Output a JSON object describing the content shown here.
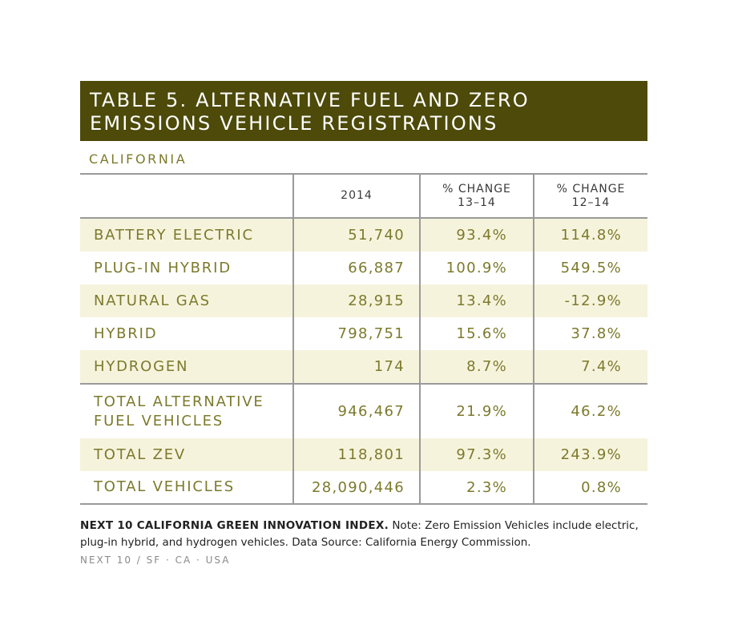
{
  "title": "TABLE 5. ALTERNATIVE FUEL AND ZERO\nEMISSIONS VEHICLE REGISTRATIONS",
  "subtitle": "CALIFORNIA",
  "columns": [
    "",
    "2014",
    "% CHANGE\n13–14",
    "% CHANGE\n12–14"
  ],
  "rows": [
    {
      "label": "BATTERY ELECTRIC",
      "v2014": "51,740",
      "chg1314": "93.4%",
      "chg1214": "114.8%"
    },
    {
      "label": "PLUG-IN HYBRID",
      "v2014": "66,887",
      "chg1314": "100.9%",
      "chg1214": "549.5%"
    },
    {
      "label": "NATURAL GAS",
      "v2014": "28,915",
      "chg1314": "13.4%",
      "chg1214": "-12.9%"
    },
    {
      "label": "HYBRID",
      "v2014": "798,751",
      "chg1314": "15.6%",
      "chg1214": "37.8%"
    },
    {
      "label": "HYDROGEN",
      "v2014": "174",
      "chg1314": "8.7%",
      "chg1214": "7.4%"
    },
    {
      "label": "TOTAL ALTERNATIVE\nFUEL VEHICLES",
      "v2014": "946,467",
      "chg1314": "21.9%",
      "chg1214": "46.2%"
    },
    {
      "label": "TOTAL ZEV",
      "v2014": "118,801",
      "chg1314": "97.3%",
      "chg1214": "243.9%"
    },
    {
      "label": "TOTAL VEHICLES",
      "v2014": "28,090,446",
      "chg1314": "2.3%",
      "chg1214": "0.8%"
    }
  ],
  "note": {
    "source_name": "NEXT 10 CALIFORNIA GREEN INNOVATION INDEX.",
    "text": " Note: Zero Emission Vehicles include electric, plug-in hybrid, and hydrogen vehicles. Data Source: California Energy Commission."
  },
  "footer": "NEXT 10 / SF · CA · USA",
  "colors": {
    "title_bg": "#4d4a0a",
    "accent_text": "#7c7a2c",
    "row_shade": "#f6f3dd",
    "rule": "#9a9a9a"
  }
}
